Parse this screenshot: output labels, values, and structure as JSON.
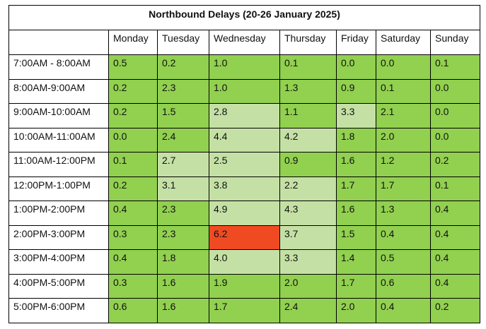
{
  "table": {
    "title": "Northbound Delays (20-26 January 2025)",
    "days": [
      "Monday",
      "Tuesday",
      "Wednesday",
      "Thursday",
      "Friday",
      "Saturday",
      "Sunday"
    ],
    "colors": {
      "green": "#92d050",
      "light_green": "#c5e0a5",
      "red": "#f04a23",
      "white": "#ffffff",
      "border": "#000000"
    },
    "rows": [
      {
        "time": "7:00AM - 8:00AM",
        "values": [
          "0.5",
          "0.2",
          "1.0",
          "0.1",
          "0.0",
          "0.0",
          "0.1"
        ],
        "shades": [
          "green",
          "green",
          "green",
          "green",
          "green",
          "green",
          "green"
        ]
      },
      {
        "time": "8:00AM-9:00AM",
        "values": [
          "0.2",
          "2.3",
          "1.0",
          "1.3",
          "0.9",
          "0.1",
          "0.0"
        ],
        "shades": [
          "green",
          "green",
          "green",
          "green",
          "green",
          "green",
          "green"
        ]
      },
      {
        "time": "9:00AM-10:00AM",
        "values": [
          "0.2",
          "1.5",
          "2.8",
          "1.1",
          "3.3",
          "2.1",
          "0.0"
        ],
        "shades": [
          "green",
          "green",
          "light_green",
          "green",
          "light_green",
          "green",
          "green"
        ]
      },
      {
        "time": "10:00AM-11:00AM",
        "values": [
          "0.0",
          "2.4",
          "4.4",
          "4.2",
          "1.8",
          "2.0",
          "0.0"
        ],
        "shades": [
          "green",
          "green",
          "light_green",
          "light_green",
          "green",
          "green",
          "green"
        ]
      },
      {
        "time": "11:00AM-12:00PM",
        "values": [
          "0.1",
          "2.7",
          "2.5",
          "0.9",
          "1.6",
          "1.2",
          "0.2"
        ],
        "shades": [
          "green",
          "light_green",
          "light_green",
          "green",
          "green",
          "green",
          "green"
        ]
      },
      {
        "time": "12:00PM-1:00PM",
        "values": [
          "0.2",
          "3.1",
          "3.8",
          "2.2",
          "1.7",
          "1.7",
          "0.1"
        ],
        "shades": [
          "green",
          "light_green",
          "light_green",
          "light_green",
          "green",
          "green",
          "green"
        ]
      },
      {
        "time": "1:00PM-2:00PM",
        "values": [
          "0.4",
          "2.3",
          "4.9",
          "4.3",
          "1.6",
          "1.3",
          "0.4"
        ],
        "shades": [
          "green",
          "green",
          "light_green",
          "light_green",
          "green",
          "green",
          "green"
        ]
      },
      {
        "time": "2:00PM-3:00PM",
        "values": [
          "0.3",
          "2.3",
          "6.2",
          "3.7",
          "1.5",
          "0.4",
          "0.4"
        ],
        "shades": [
          "green",
          "green",
          "red",
          "light_green",
          "green",
          "green",
          "green"
        ]
      },
      {
        "time": "3:00PM-4:00PM",
        "values": [
          "0.4",
          "1.8",
          "4.0",
          "3.3",
          "1.4",
          "0.5",
          "0.4"
        ],
        "shades": [
          "green",
          "green",
          "light_green",
          "light_green",
          "green",
          "green",
          "green"
        ]
      },
      {
        "time": "4:00PM-5:00PM",
        "values": [
          "0.3",
          "1.6",
          "1.9",
          "2.0",
          "1.7",
          "0.6",
          "0.4"
        ],
        "shades": [
          "green",
          "green",
          "green",
          "green",
          "green",
          "green",
          "green"
        ]
      },
      {
        "time": "5:00PM-6:00PM",
        "values": [
          "0.6",
          "1.6",
          "1.7",
          "2.4",
          "2.0",
          "0.4",
          "0.2"
        ],
        "shades": [
          "green",
          "green",
          "green",
          "green",
          "green",
          "green",
          "green"
        ]
      }
    ]
  }
}
